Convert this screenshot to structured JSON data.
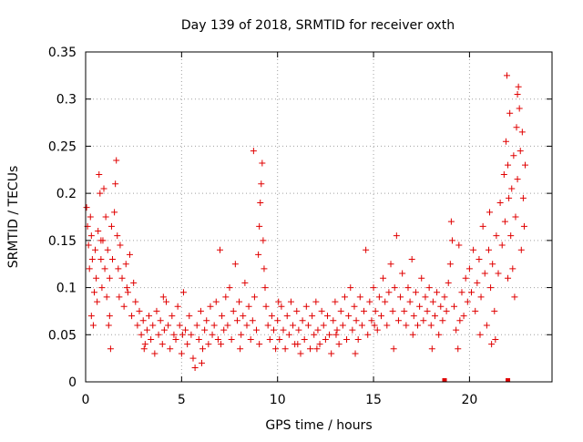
{
  "chart_data": {
    "type": "scatter",
    "title": "Day 139 of 2018, SRMTID for receiver oxth",
    "xlabel": "GPS time / hours",
    "ylabel": "SRMTID / TECUs",
    "xlim": [
      0,
      24.3
    ],
    "ylim": [
      0,
      0.35
    ],
    "xticks": [
      0,
      5,
      10,
      15,
      20
    ],
    "xtick_labels": [
      "0",
      "5",
      "10",
      "15",
      "20"
    ],
    "yticks": [
      0,
      0.05,
      0.1,
      0.15,
      0.2,
      0.25,
      0.3,
      0.35
    ],
    "ytick_labels": [
      "0",
      "0.05",
      "0.1",
      "0.15",
      "0.2",
      "0.25",
      "0.3",
      "0.35"
    ],
    "grid": true,
    "legend": "none",
    "marker": "plus",
    "color": "#e00000",
    "series": [
      {
        "points": [
          [
            0.05,
            0.185
          ],
          [
            0.1,
            0.165
          ],
          [
            0.15,
            0.145
          ],
          [
            0.2,
            0.12
          ],
          [
            0.25,
            0.175
          ],
          [
            0.3,
            0.155
          ],
          [
            0.35,
            0.13
          ],
          [
            0.4,
            0.06
          ],
          [
            0.45,
            0.095
          ],
          [
            0.5,
            0.14
          ],
          [
            0.55,
            0.11
          ],
          [
            0.6,
            0.085
          ],
          [
            0.65,
            0.16
          ],
          [
            0.7,
            0.22
          ],
          [
            0.75,
            0.2
          ],
          [
            0.8,
            0.13
          ],
          [
            0.85,
            0.1
          ],
          [
            0.9,
            0.15
          ],
          [
            0.95,
            0.205
          ],
          [
            1.0,
            0.12
          ],
          [
            1.05,
            0.175
          ],
          [
            1.1,
            0.09
          ],
          [
            1.15,
            0.14
          ],
          [
            1.2,
            0.06
          ],
          [
            1.25,
            0.11
          ],
          [
            1.3,
            0.035
          ],
          [
            1.35,
            0.165
          ],
          [
            1.4,
            0.13
          ],
          [
            1.5,
            0.18
          ],
          [
            1.55,
            0.21
          ],
          [
            1.6,
            0.235
          ],
          [
            1.65,
            0.155
          ],
          [
            1.7,
            0.12
          ],
          [
            1.75,
            0.09
          ],
          [
            1.8,
            0.145
          ],
          [
            1.9,
            0.11
          ],
          [
            2.0,
            0.08
          ],
          [
            2.1,
            0.125
          ],
          [
            2.2,
            0.095
          ],
          [
            2.3,
            0.135
          ],
          [
            2.4,
            0.07
          ],
          [
            2.5,
            0.105
          ],
          [
            2.6,
            0.085
          ],
          [
            2.7,
            0.06
          ],
          [
            2.8,
            0.075
          ],
          [
            2.9,
            0.05
          ],
          [
            3.0,
            0.065
          ],
          [
            3.1,
            0.04
          ],
          [
            3.2,
            0.055
          ],
          [
            3.3,
            0.07
          ],
          [
            3.4,
            0.045
          ],
          [
            3.5,
            0.06
          ],
          [
            3.6,
            0.03
          ],
          [
            3.7,
            0.075
          ],
          [
            3.8,
            0.05
          ],
          [
            3.9,
            0.065
          ],
          [
            4.0,
            0.04
          ],
          [
            4.1,
            0.055
          ],
          [
            4.2,
            0.085
          ],
          [
            4.3,
            0.06
          ],
          [
            4.4,
            0.035
          ],
          [
            4.5,
            0.07
          ],
          [
            4.6,
            0.05
          ],
          [
            4.7,
            0.045
          ],
          [
            4.8,
            0.08
          ],
          [
            4.9,
            0.06
          ],
          [
            5.0,
            0.03
          ],
          [
            5.1,
            0.095
          ],
          [
            5.2,
            0.055
          ],
          [
            5.3,
            0.04
          ],
          [
            5.4,
            0.07
          ],
          [
            5.5,
            0.05
          ],
          [
            5.6,
            0.025
          ],
          [
            5.7,
            0.015
          ],
          [
            5.8,
            0.06
          ],
          [
            5.9,
            0.045
          ],
          [
            6.0,
            0.075
          ],
          [
            6.1,
            0.035
          ],
          [
            6.2,
            0.055
          ],
          [
            6.3,
            0.065
          ],
          [
            6.4,
            0.04
          ],
          [
            6.5,
            0.08
          ],
          [
            6.6,
            0.05
          ],
          [
            6.7,
            0.06
          ],
          [
            6.8,
            0.085
          ],
          [
            6.9,
            0.045
          ],
          [
            7.0,
            0.14
          ],
          [
            7.1,
            0.07
          ],
          [
            7.2,
            0.055
          ],
          [
            7.3,
            0.09
          ],
          [
            7.4,
            0.06
          ],
          [
            7.5,
            0.1
          ],
          [
            7.6,
            0.045
          ],
          [
            7.7,
            0.075
          ],
          [
            7.8,
            0.125
          ],
          [
            7.9,
            0.065
          ],
          [
            8.0,
            0.085
          ],
          [
            8.1,
            0.05
          ],
          [
            8.2,
            0.07
          ],
          [
            8.3,
            0.105
          ],
          [
            8.4,
            0.06
          ],
          [
            8.5,
            0.08
          ],
          [
            8.6,
            0.045
          ],
          [
            8.7,
            0.065
          ],
          [
            8.75,
            0.245
          ],
          [
            8.8,
            0.09
          ],
          [
            8.9,
            0.055
          ],
          [
            9.0,
            0.135
          ],
          [
            9.05,
            0.165
          ],
          [
            9.1,
            0.19
          ],
          [
            9.15,
            0.21
          ],
          [
            9.2,
            0.232
          ],
          [
            9.25,
            0.15
          ],
          [
            9.3,
            0.12
          ],
          [
            9.35,
            0.1
          ],
          [
            9.4,
            0.08
          ],
          [
            9.5,
            0.06
          ],
          [
            9.6,
            0.045
          ],
          [
            9.7,
            0.07
          ],
          [
            9.8,
            0.055
          ],
          [
            9.9,
            0.035
          ],
          [
            10.0,
            0.065
          ],
          [
            10.1,
            0.045
          ],
          [
            10.2,
            0.08
          ],
          [
            10.3,
            0.055
          ],
          [
            10.4,
            0.035
          ],
          [
            10.5,
            0.07
          ],
          [
            10.6,
            0.05
          ],
          [
            10.7,
            0.085
          ],
          [
            10.8,
            0.06
          ],
          [
            10.9,
            0.04
          ],
          [
            11.0,
            0.075
          ],
          [
            11.1,
            0.055
          ],
          [
            11.2,
            0.03
          ],
          [
            11.3,
            0.065
          ],
          [
            11.4,
            0.045
          ],
          [
            11.5,
            0.08
          ],
          [
            11.6,
            0.06
          ],
          [
            11.7,
            0.035
          ],
          [
            11.8,
            0.07
          ],
          [
            11.9,
            0.05
          ],
          [
            12.0,
            0.085
          ],
          [
            12.1,
            0.055
          ],
          [
            12.2,
            0.04
          ],
          [
            12.3,
            0.075
          ],
          [
            12.4,
            0.06
          ],
          [
            12.5,
            0.045
          ],
          [
            12.6,
            0.07
          ],
          [
            12.7,
            0.05
          ],
          [
            12.8,
            0.03
          ],
          [
            12.9,
            0.065
          ],
          [
            13.0,
            0.085
          ],
          [
            13.1,
            0.055
          ],
          [
            13.2,
            0.04
          ],
          [
            13.3,
            0.075
          ],
          [
            13.4,
            0.06
          ],
          [
            13.5,
            0.09
          ],
          [
            13.6,
            0.045
          ],
          [
            13.7,
            0.07
          ],
          [
            13.8,
            0.1
          ],
          [
            13.9,
            0.055
          ],
          [
            14.0,
            0.08
          ],
          [
            14.1,
            0.065
          ],
          [
            14.2,
            0.045
          ],
          [
            14.3,
            0.09
          ],
          [
            14.4,
            0.06
          ],
          [
            14.5,
            0.075
          ],
          [
            14.6,
            0.14
          ],
          [
            14.7,
            0.05
          ],
          [
            14.8,
            0.085
          ],
          [
            14.9,
            0.065
          ],
          [
            15.0,
            0.1
          ],
          [
            15.1,
            0.075
          ],
          [
            15.2,
            0.055
          ],
          [
            15.3,
            0.09
          ],
          [
            15.4,
            0.07
          ],
          [
            15.5,
            0.11
          ],
          [
            15.6,
            0.085
          ],
          [
            15.7,
            0.06
          ],
          [
            15.8,
            0.095
          ],
          [
            15.9,
            0.125
          ],
          [
            16.0,
            0.075
          ],
          [
            16.1,
            0.1
          ],
          [
            16.2,
            0.155
          ],
          [
            16.3,
            0.065
          ],
          [
            16.4,
            0.09
          ],
          [
            16.5,
            0.115
          ],
          [
            16.6,
            0.075
          ],
          [
            16.7,
            0.06
          ],
          [
            16.8,
            0.1
          ],
          [
            16.9,
            0.085
          ],
          [
            17.0,
            0.13
          ],
          [
            17.1,
            0.07
          ],
          [
            17.2,
            0.095
          ],
          [
            17.3,
            0.06
          ],
          [
            17.4,
            0.08
          ],
          [
            17.5,
            0.11
          ],
          [
            17.6,
            0.065
          ],
          [
            17.7,
            0.09
          ],
          [
            17.8,
            0.075
          ],
          [
            17.9,
            0.1
          ],
          [
            18.0,
            0.06
          ],
          [
            18.1,
            0.085
          ],
          [
            18.2,
            0.07
          ],
          [
            18.3,
            0.095
          ],
          [
            18.4,
            0.05
          ],
          [
            18.5,
            0.08
          ],
          [
            18.6,
            0.065
          ],
          [
            18.7,
            0.09
          ],
          [
            18.8,
            0.075
          ],
          [
            18.9,
            0.105
          ],
          [
            19.0,
            0.125
          ],
          [
            19.05,
            0.17
          ],
          [
            19.1,
            0.15
          ],
          [
            19.2,
            0.08
          ],
          [
            19.3,
            0.055
          ],
          [
            19.4,
            0.035
          ],
          [
            19.5,
            0.065
          ],
          [
            19.6,
            0.095
          ],
          [
            19.7,
            0.07
          ],
          [
            19.8,
            0.11
          ],
          [
            19.9,
            0.085
          ],
          [
            20.0,
            0.12
          ],
          [
            20.1,
            0.095
          ],
          [
            20.2,
            0.14
          ],
          [
            20.3,
            0.075
          ],
          [
            20.4,
            0.105
          ],
          [
            20.5,
            0.13
          ],
          [
            20.6,
            0.09
          ],
          [
            20.7,
            0.165
          ],
          [
            20.8,
            0.115
          ],
          [
            20.9,
            0.06
          ],
          [
            21.0,
            0.14
          ],
          [
            21.05,
            0.18
          ],
          [
            21.1,
            0.1
          ],
          [
            21.2,
            0.125
          ],
          [
            21.3,
            0.075
          ],
          [
            21.35,
            0.045
          ],
          [
            21.4,
            0.155
          ],
          [
            21.5,
            0.115
          ],
          [
            21.6,
            0.19
          ],
          [
            21.7,
            0.145
          ],
          [
            21.8,
            0.22
          ],
          [
            21.85,
            0.17
          ],
          [
            21.9,
            0.255
          ],
          [
            21.95,
            0.325
          ],
          [
            22.0,
            0.23
          ],
          [
            22.05,
            0.195
          ],
          [
            22.1,
            0.285
          ],
          [
            22.15,
            0.155
          ],
          [
            22.2,
            0.205
          ],
          [
            22.25,
            0.12
          ],
          [
            22.3,
            0.24
          ],
          [
            22.35,
            0.09
          ],
          [
            22.4,
            0.175
          ],
          [
            22.45,
            0.27
          ],
          [
            22.5,
            0.215
          ],
          [
            22.55,
            0.313
          ],
          [
            22.6,
            0.29
          ],
          [
            22.65,
            0.245
          ],
          [
            22.7,
            0.14
          ],
          [
            22.75,
            0.265
          ],
          [
            22.8,
            0.195
          ],
          [
            22.85,
            0.165
          ],
          [
            22.9,
            0.23
          ],
          [
            0.3,
            0.07
          ],
          [
            0.8,
            0.15
          ],
          [
            1.25,
            0.07
          ],
          [
            2.15,
            0.1
          ],
          [
            3.05,
            0.035
          ],
          [
            4.05,
            0.09
          ],
          [
            5.05,
            0.05
          ],
          [
            6.05,
            0.02
          ],
          [
            7.05,
            0.04
          ],
          [
            8.05,
            0.035
          ],
          [
            9.05,
            0.04
          ],
          [
            10.05,
            0.085
          ],
          [
            11.05,
            0.04
          ],
          [
            12.05,
            0.035
          ],
          [
            13.05,
            0.05
          ],
          [
            14.05,
            0.03
          ],
          [
            15.05,
            0.06
          ],
          [
            16.05,
            0.035
          ],
          [
            17.05,
            0.05
          ],
          [
            18.05,
            0.035
          ],
          [
            19.45,
            0.145
          ],
          [
            20.55,
            0.05
          ],
          [
            21.15,
            0.04
          ],
          [
            22.0,
            0.11
          ],
          [
            22.5,
            0.305
          ]
        ]
      }
    ],
    "baseline_marks_x": [
      18.7,
      22.0
    ]
  }
}
